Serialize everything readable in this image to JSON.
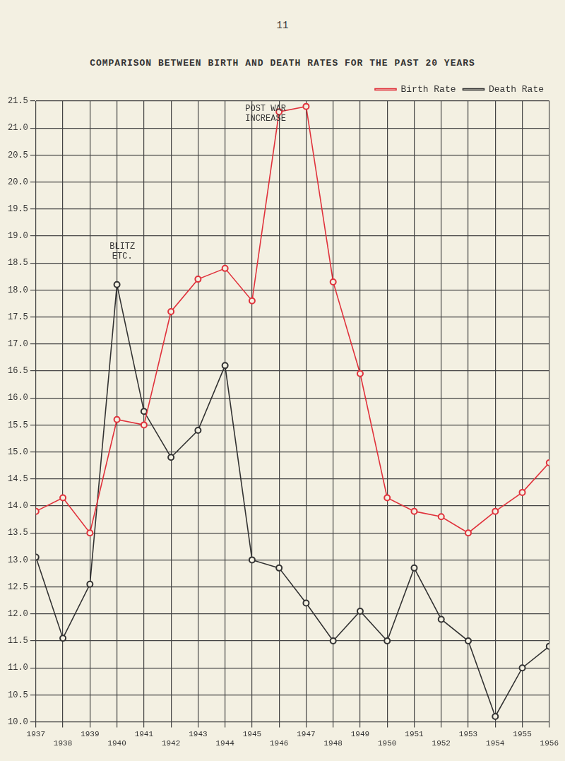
{
  "page_number": "11",
  "chart_data": {
    "type": "line",
    "title": "COMPARISON BETWEEN BIRTH AND DEATH RATES FOR THE PAST 20 YEARS",
    "x": [
      1937,
      1938,
      1939,
      1940,
      1941,
      1942,
      1943,
      1944,
      1945,
      1946,
      1947,
      1948,
      1949,
      1950,
      1951,
      1952,
      1953,
      1954,
      1955,
      1956
    ],
    "series": [
      {
        "name": "Birth Rate",
        "color": "#e0323c",
        "marker": "circle",
        "line_style": "solid",
        "values": [
          13.9,
          14.15,
          13.5,
          15.6,
          15.5,
          17.6,
          18.2,
          18.4,
          17.8,
          21.3,
          21.4,
          18.15,
          16.45,
          14.15,
          13.9,
          13.8,
          13.5,
          13.9,
          14.25,
          14.8
        ]
      },
      {
        "name": "Death Rate",
        "color": "#333333",
        "marker": "circle",
        "line_style": "solid",
        "values": [
          13.05,
          11.55,
          12.55,
          18.1,
          15.75,
          14.9,
          15.4,
          16.6,
          13.0,
          12.85,
          12.2,
          11.5,
          12.05,
          11.5,
          12.85,
          11.9,
          11.5,
          10.1,
          11.0,
          11.4
        ]
      }
    ],
    "xlim": [
      1937,
      1956
    ],
    "xticks": [
      1937,
      1938,
      1939,
      1940,
      1941,
      1942,
      1943,
      1944,
      1945,
      1946,
      1947,
      1948,
      1949,
      1950,
      1951,
      1952,
      1953,
      1954,
      1955,
      1956
    ],
    "ylim": [
      10,
      21.5
    ],
    "yticks": [
      {
        "value": 10,
        "label": "10.0"
      },
      10.5,
      {
        "value": 11,
        "label": "11.0"
      },
      11.5,
      {
        "value": 12,
        "label": "12.0"
      },
      12.5,
      {
        "value": 13,
        "label": "13.0"
      },
      13.5,
      {
        "value": 14,
        "label": "14.0"
      },
      14.5,
      {
        "value": 15,
        "label": "15.0"
      },
      15.5,
      {
        "value": 16,
        "label": "16.0"
      },
      16.5,
      {
        "value": 17,
        "label": "17.0"
      },
      17.5,
      {
        "value": 18,
        "label": "18.0"
      },
      18.5,
      {
        "value": 19,
        "label": "19.0"
      },
      19.5,
      {
        "value": 20,
        "label": "20.0"
      },
      20.5,
      {
        "value": 21,
        "label": "21.0"
      },
      21.5
    ],
    "annotations": [
      {
        "lines": [
          "BLITZ",
          "ETC."
        ],
        "x": 1940.2,
        "y": 18.55
      },
      {
        "lines": [
          "POST WAR",
          "INCREASE"
        ],
        "x": 1945.5,
        "y": 21.1
      }
    ],
    "grid": true,
    "legend": "upper right"
  }
}
